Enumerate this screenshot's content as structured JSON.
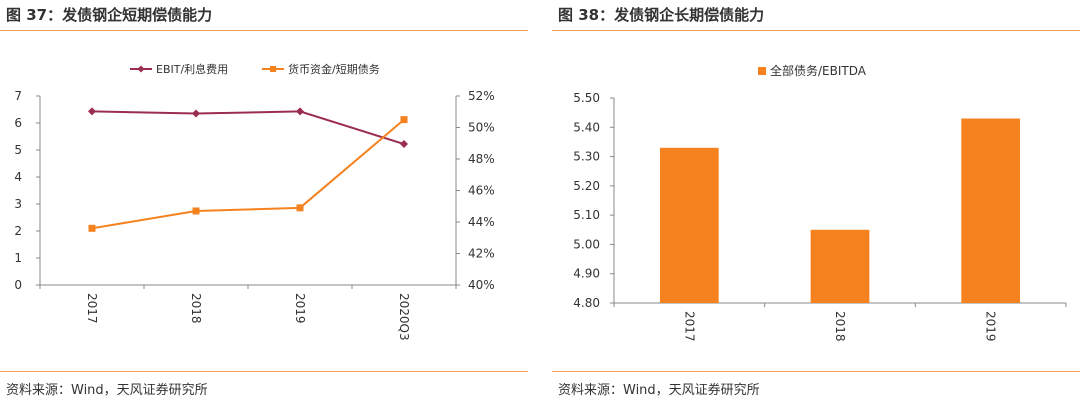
{
  "left": {
    "title": "图 37：发债钢企短期偿债能力",
    "source": "资料来源：Wind，天风证券研究所"
  },
  "right": {
    "title": "图 38：发债钢企长期偿债能力",
    "source": "资料来源：Wind，天风证券研究所"
  },
  "colors": {
    "accent": "#f0a050",
    "line1": "#9b2d4f",
    "line2": "#f5821f",
    "bar": "#f5821f"
  },
  "chart_data": [
    {
      "type": "line",
      "categories": [
        "2017",
        "2018",
        "2019",
        "2020Q3"
      ],
      "series": [
        {
          "name": "EBIT/利息费用",
          "axis": "left",
          "values": [
            6.43,
            6.35,
            6.43,
            5.22
          ],
          "marker": "diamond"
        },
        {
          "name": "货币资金/短期债务",
          "axis": "right",
          "values": [
            43.6,
            44.7,
            44.9,
            50.5
          ],
          "marker": "square",
          "unit": "%"
        }
      ],
      "y_left": {
        "min": 0,
        "max": 7,
        "ticks": [
          "0",
          "1",
          "2",
          "3",
          "4",
          "5",
          "6",
          "7"
        ]
      },
      "y_right": {
        "min": 40,
        "max": 52,
        "ticks": [
          "40%",
          "42%",
          "44%",
          "46%",
          "48%",
          "50%",
          "52%"
        ]
      },
      "legend": "top-center",
      "grid": false
    },
    {
      "type": "bar",
      "categories": [
        "2017",
        "2018",
        "2019"
      ],
      "series": [
        {
          "name": "全部债务/EBITDA",
          "values": [
            5.33,
            5.05,
            5.43
          ]
        }
      ],
      "ylim": [
        4.8,
        5.5
      ],
      "y_ticks": [
        "4.80",
        "4.90",
        "5.00",
        "5.10",
        "5.20",
        "5.30",
        "5.40",
        "5.50"
      ],
      "legend": "top-center",
      "grid": false
    }
  ]
}
